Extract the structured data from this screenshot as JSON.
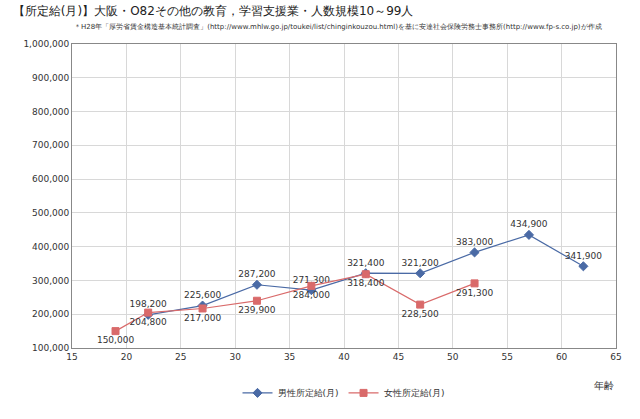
{
  "chart_data": {
    "type": "line",
    "title": "【所定給(月)】大阪・O82その他の教育，学習支援業・人数規模10～99人",
    "subtitle": "＊H28年「厚労省賃金構造基本統計調査」(http://www.mhlw.go.jp/toukei/list/chinginkouzou.html)を基に安達社会保険労務士事務所(http://www.fp-s.co.jp)が作成",
    "x_label": "年齢",
    "series": [
      {
        "name": "男性所定給(月)",
        "color": "#4a6aa5",
        "marker": "diamond",
        "line_style": "solid",
        "x": [
          22,
          27,
          32,
          37,
          42,
          47,
          52,
          57,
          62
        ],
        "values": [
          198200,
          225600,
          287200,
          271300,
          321400,
          321200,
          383000,
          434900,
          341900
        ],
        "value_labels": [
          "198,200",
          "225,600",
          "287,200",
          "271,300",
          "321,400",
          "321,200",
          "383,000",
          "434,900",
          "341,900"
        ]
      },
      {
        "name": "女性所定給(月)",
        "color": "#d96a6a",
        "marker": "square",
        "line_style": "solid",
        "x": [
          19,
          22,
          27,
          32,
          37,
          42,
          47,
          52
        ],
        "values": [
          150000,
          204800,
          217000,
          239900,
          284000,
          318400,
          228500,
          291300
        ],
        "value_labels": [
          "150,000",
          "204,800",
          "217,000",
          "239,900",
          "284,000",
          "318,400",
          "228,500",
          "291,300"
        ]
      }
    ],
    "xlim": [
      15,
      65
    ],
    "xticks": [
      15,
      20,
      25,
      30,
      35,
      40,
      45,
      50,
      55,
      60,
      65
    ],
    "ylim": [
      100000,
      1000000
    ],
    "yticks": [
      {
        "value": 100000,
        "label": "100,000"
      },
      {
        "value": 200000,
        "label": "200,000"
      },
      {
        "value": 300000,
        "label": "300,000"
      },
      {
        "value": 400000,
        "label": "400,000"
      },
      {
        "value": 500000,
        "label": "500,000"
      },
      {
        "value": 600000,
        "label": "600,000"
      },
      {
        "value": 700000,
        "label": "700,000"
      },
      {
        "value": 800000,
        "label": "800,000"
      },
      {
        "value": 900000,
        "label": "900,000"
      },
      {
        "value": 1000000,
        "label": "1,000,000"
      }
    ],
    "grid": true,
    "legend": "bottom",
    "data_labels": true
  }
}
